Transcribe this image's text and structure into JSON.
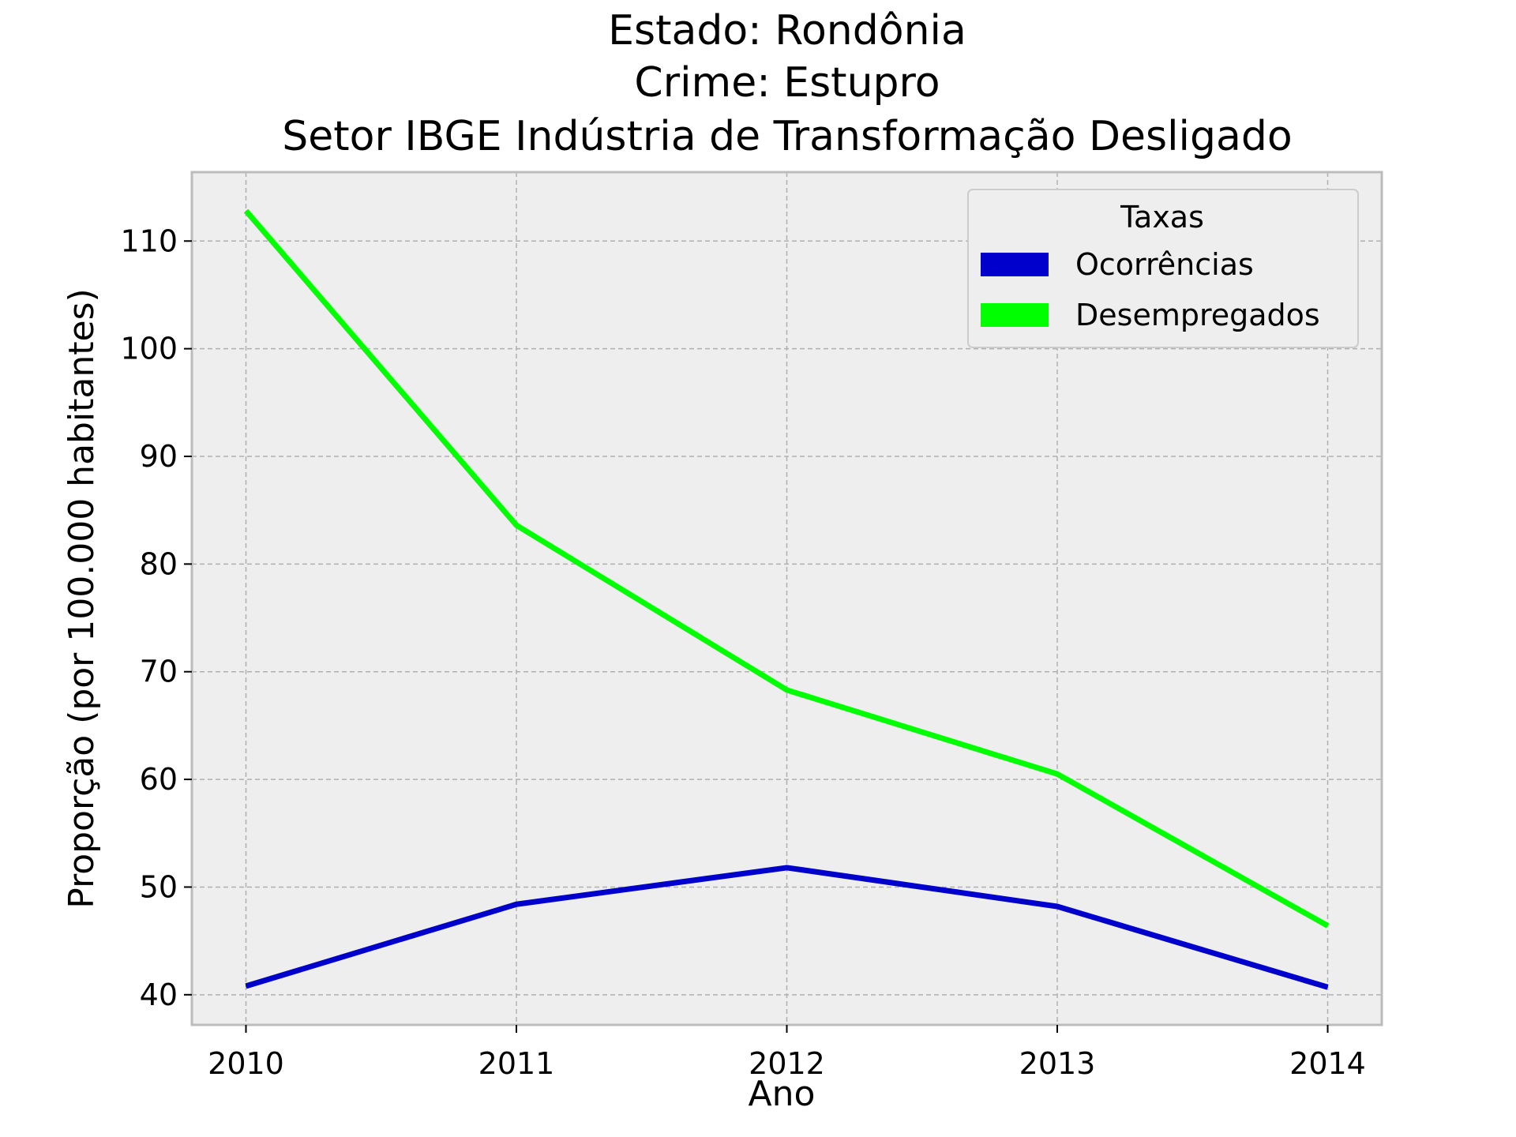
{
  "colors": {
    "background": "#ffffff",
    "plot_background": "#eeeeee",
    "frame": "#bcbcbc",
    "ocorrencias": "#0000cc",
    "desempregados": "#00ff00"
  },
  "chart_data": {
    "type": "line",
    "title_lines": [
      "Estado: Rondônia",
      "Crime: Estupro",
      "Setor IBGE  Indústria de Transformação   Desligado"
    ],
    "xlabel": "Ano",
    "ylabel": "Proporção (por 100.000 habitantes)",
    "x": [
      2010,
      2011,
      2012,
      2013,
      2014
    ],
    "x_tick_labels": [
      "2010",
      "2011",
      "2012",
      "2013",
      "2014"
    ],
    "xlim": [
      2009.8,
      2014.2
    ],
    "ylim": [
      37.2,
      116.4
    ],
    "y_ticks": [
      40,
      50,
      60,
      70,
      80,
      90,
      100,
      110
    ],
    "y_tick_labels": [
      "40",
      "50",
      "60",
      "70",
      "80",
      "90",
      "100",
      "110"
    ],
    "grid": true,
    "legend": {
      "title": "Taxas",
      "position": "top-right"
    },
    "series": [
      {
        "name": "Ocorrências",
        "color": "#0000cc",
        "values": [
          40.8,
          48.4,
          51.8,
          48.2,
          40.7
        ]
      },
      {
        "name": "Desempregados",
        "color": "#00ff00",
        "values": [
          112.8,
          83.6,
          68.3,
          60.5,
          46.4
        ]
      }
    ]
  }
}
